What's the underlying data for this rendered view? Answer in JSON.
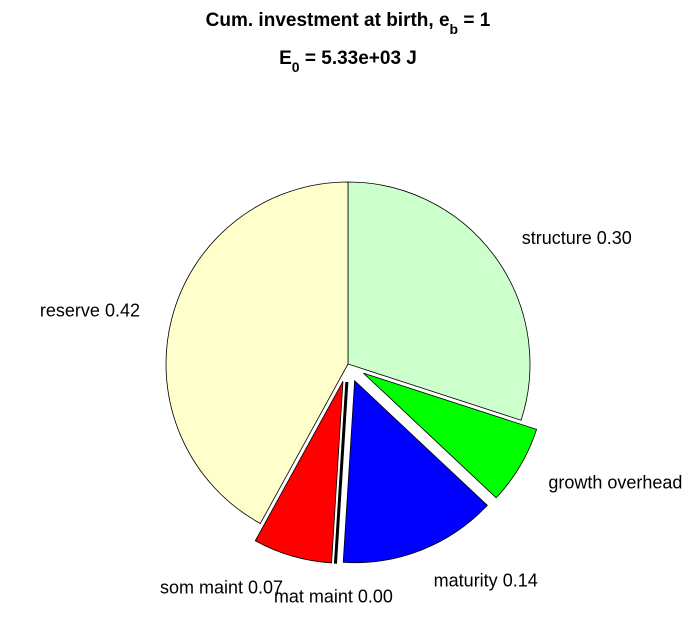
{
  "chart_data": {
    "type": "pie",
    "title": [
      "Cum. investment at birth, e",
      "b",
      " = 1"
    ],
    "subtitle": [
      "E",
      "0",
      " = 5.33e+03 J"
    ],
    "categories": [
      "structure",
      "growth overhead",
      "maturity",
      "mat maint",
      "som maint",
      "reserve"
    ],
    "values": [
      0.3,
      0.07,
      0.14,
      0.0,
      0.07,
      0.42
    ],
    "value_labels": [
      "0.30",
      null,
      "0.14",
      "0.00",
      "0.07",
      "0.42"
    ],
    "colors": [
      "#ccffcc",
      "#00ff00",
      "#0000ff",
      "#ff00ff",
      "#ff0000",
      "#ffffcc"
    ],
    "explode": [
      false,
      true,
      true,
      true,
      true,
      false
    ],
    "direction": "clockwise"
  }
}
